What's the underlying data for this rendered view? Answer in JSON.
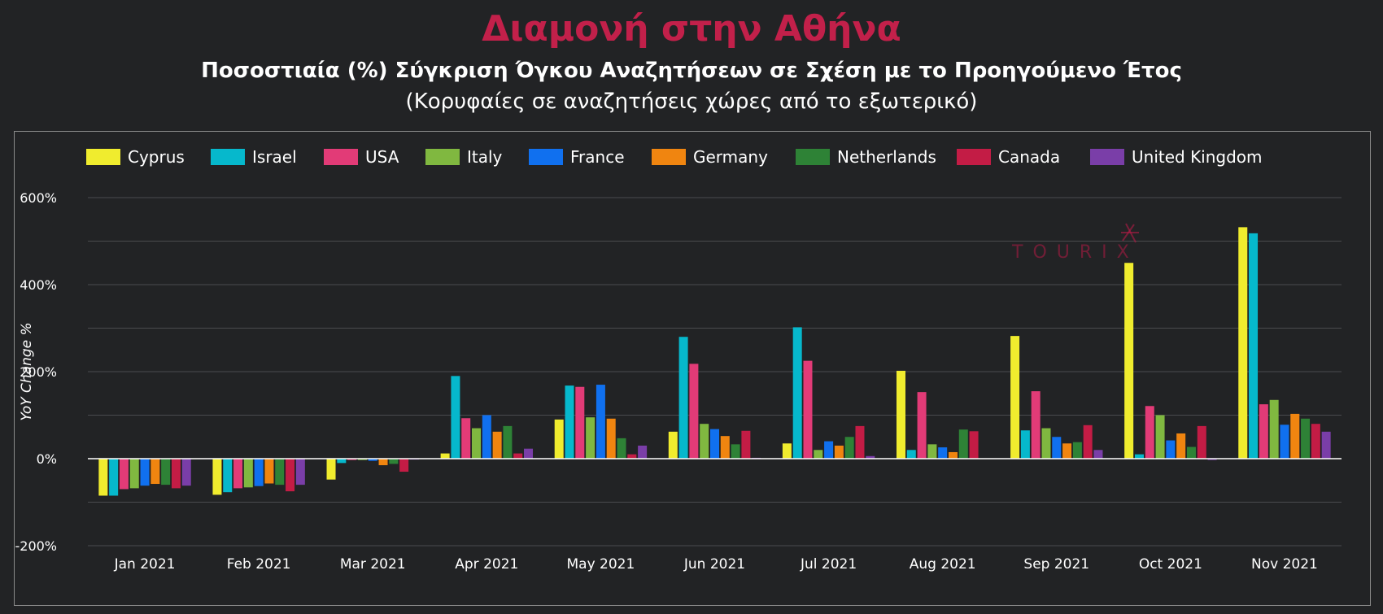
{
  "header": {
    "title": "Διαμονή στην Αθήνα",
    "subtitle": "Ποσοστιαία (%) Σύγκριση Όγκου Αναζητήσεων σε Σχέση με το Προηγούμενο Έτος",
    "subtitle2": "(Κορυφαίες σε αναζητήσεις χώρες από το εξωτερικό)"
  },
  "watermark": {
    "text": "TOURIX",
    "color": "#b31b46"
  },
  "chart_data": {
    "type": "bar",
    "ylabel": "YoY Change %",
    "xlabel": "",
    "ylim": [
      -200,
      600
    ],
    "yticks": [
      -200,
      0,
      200,
      400,
      600
    ],
    "ytick_labels": [
      "-200%",
      "0%",
      "200%",
      "400%",
      "600%"
    ],
    "grid": true,
    "legend_position": "top",
    "categories": [
      "Jan 2021",
      "Feb 2021",
      "Mar 2021",
      "Apr 2021",
      "May 2021",
      "Jun 2021",
      "Jul 2021",
      "Aug 2021",
      "Sep 2021",
      "Oct 2021",
      "Nov 2021"
    ],
    "series": [
      {
        "name": "Cyprus",
        "color": "#f0ec2e",
        "values": [
          -85,
          -83,
          -48,
          12,
          90,
          62,
          35,
          202,
          282,
          450,
          532
        ]
      },
      {
        "name": "Israel",
        "color": "#06b8cc",
        "values": [
          -85,
          -77,
          -10,
          190,
          168,
          280,
          302,
          20,
          65,
          10,
          518
        ]
      },
      {
        "name": "USA",
        "color": "#e23b77",
        "values": [
          -70,
          -68,
          -3,
          93,
          165,
          218,
          225,
          153,
          155,
          121,
          125
        ]
      },
      {
        "name": "Italy",
        "color": "#80b840",
        "values": [
          -68,
          -66,
          -3,
          70,
          95,
          80,
          20,
          33,
          70,
          100,
          135
        ]
      },
      {
        "name": "France",
        "color": "#1070ef",
        "values": [
          -62,
          -63,
          -5,
          100,
          170,
          68,
          40,
          26,
          50,
          42,
          78
        ]
      },
      {
        "name": "Germany",
        "color": "#f08510",
        "values": [
          -58,
          -57,
          -15,
          62,
          92,
          52,
          30,
          15,
          35,
          58,
          103
        ]
      },
      {
        "name": "Netherlands",
        "color": "#2e8236",
        "values": [
          -60,
          -60,
          -12,
          75,
          47,
          33,
          50,
          67,
          38,
          27,
          92
        ]
      },
      {
        "name": "Canada",
        "color": "#c31c45",
        "values": [
          -68,
          -75,
          -30,
          12,
          10,
          64,
          75,
          63,
          77,
          75,
          80
        ]
      },
      {
        "name": "United Kingdom",
        "color": "#7a3ea8",
        "values": [
          -62,
          -60,
          -2,
          23,
          30,
          2,
          6,
          0,
          20,
          -3,
          62
        ]
      }
    ]
  }
}
